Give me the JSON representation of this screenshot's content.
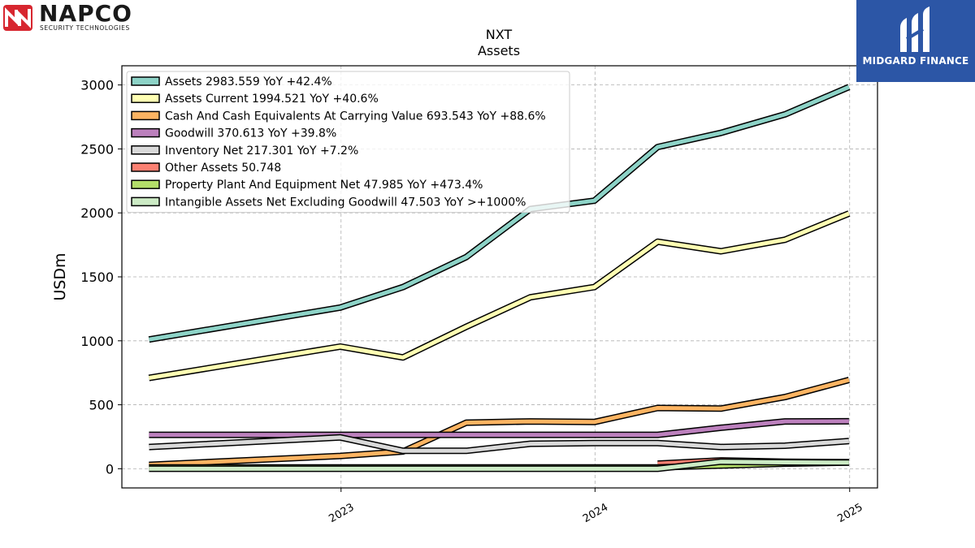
{
  "logos": {
    "left_name": "NAPCO",
    "left_tagline": "SECURITY TECHNOLOGIES",
    "right_name": "MIDGARD FINANCE"
  },
  "chart_data": {
    "type": "line",
    "title": "NXT",
    "subtitle": "Assets",
    "ylabel": "USDm",
    "xlabel": "",
    "ylim": [
      -150,
      3150
    ],
    "xlim": [
      "2022-02-20",
      "2025-02-10"
    ],
    "yticks": [
      0,
      500,
      1000,
      1500,
      2000,
      2500,
      3000
    ],
    "xticks": [
      {
        "label": "2023",
        "x": "2023-01-01"
      },
      {
        "label": "2024",
        "x": "2024-01-01"
      },
      {
        "label": "2025",
        "x": "2025-01-01"
      }
    ],
    "grid": true,
    "legend_position": "top-left",
    "x": [
      "2022-03-31",
      "2022-12-31",
      "2023-03-31",
      "2023-06-30",
      "2023-09-30",
      "2023-12-31",
      "2024-03-31",
      "2024-06-30",
      "2024-09-30",
      "2024-12-31"
    ],
    "series": [
      {
        "name": "Assets",
        "legend": "Assets  2983.559 YoY +42.4%",
        "color": "#8dd3c7",
        "values": [
          1010,
          1260,
          1420,
          1655,
          2030,
          2095,
          2515,
          2625,
          2770,
          2984
        ]
      },
      {
        "name": "Assets Current",
        "legend": "Assets Current  1994.521 YoY +40.6%",
        "color": "#ffffb3",
        "values": [
          710,
          955,
          870,
          1110,
          1340,
          1420,
          1775,
          1700,
          1790,
          1995
        ]
      },
      {
        "name": "Cash And Cash Equivalents At Carrying Value",
        "legend": "Cash And Cash Equivalents At Carrying Value  693.543 YoY +88.6%",
        "color": "#fdb462",
        "values": [
          30,
          100,
          135,
          360,
          370,
          365,
          475,
          470,
          560,
          694
        ]
      },
      {
        "name": "Goodwill",
        "legend": "Goodwill  370.613 YoY +39.8%",
        "color": "#bc80bd",
        "values": [
          265,
          265,
          265,
          265,
          265,
          265,
          265,
          320,
          370,
          371
        ]
      },
      {
        "name": "Inventory Net",
        "legend": "Inventory Net  217.301 YoY +7.2%",
        "color": "#d9d9d9",
        "values": [
          170,
          245,
          140,
          140,
          195,
          200,
          200,
          170,
          180,
          217
        ]
      },
      {
        "name": "Other Assets",
        "legend": "Other Assets  50.748",
        "color": "#fb8072",
        "values": [
          null,
          null,
          null,
          null,
          null,
          null,
          40,
          65,
          55,
          51
        ]
      },
      {
        "name": "Property Plant And Equipment Net",
        "legend": "Property Plant And Equipment Net  47.985 YoY +473.4%",
        "color": "#b3de69",
        "values": [
          10,
          10,
          10,
          10,
          10,
          10,
          10,
          25,
          40,
          48
        ]
      },
      {
        "name": "Intangible Assets Net Excluding Goodwill",
        "legend": "Intangible Assets Net Excluding Goodwill  47.503 YoY >+1000%",
        "color": "#ccebc5",
        "values": [
          0,
          0,
          0,
          0,
          0,
          0,
          0,
          55,
          50,
          48
        ]
      }
    ]
  }
}
